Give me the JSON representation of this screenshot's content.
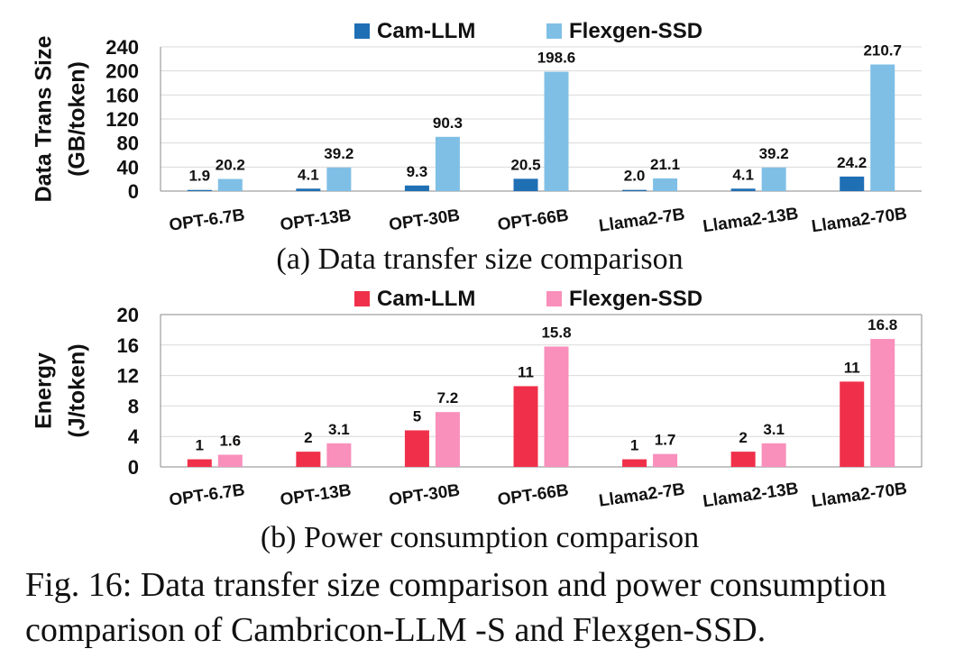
{
  "chart_data": [
    {
      "type": "bar",
      "categories": [
        "OPT-6.7B",
        "OPT-13B",
        "OPT-30B",
        "OPT-66B",
        "Llama2-7B",
        "Llama2-13B",
        "Llama2-70B"
      ],
      "series": [
        {
          "name": "Cam-LLM",
          "color": "#1f6fb5",
          "values": [
            1.9,
            4.1,
            9.3,
            20.5,
            2.0,
            4.1,
            24.2
          ],
          "labels": [
            "1.9",
            "4.1",
            "9.3",
            "20.5",
            "2.0",
            "4.1",
            "24.2"
          ]
        },
        {
          "name": "Flexgen-SSD",
          "color": "#7fbfe6",
          "values": [
            20.2,
            39.2,
            90.3,
            198.6,
            21.1,
            39.2,
            210.7
          ],
          "labels": [
            "20.2",
            "39.2",
            "90.3",
            "198.6",
            "21.1",
            "39.2",
            "210.7"
          ]
        }
      ],
      "ylabel": [
        "Data Trans Size",
        "(GB/token)"
      ],
      "ylim": [
        0,
        240
      ],
      "yticks": [
        0,
        40,
        80,
        120,
        160,
        200,
        240
      ],
      "grid": true,
      "legend": "top-center",
      "caption": "(a) Data transfer size comparison"
    },
    {
      "type": "bar",
      "categories": [
        "OPT-6.7B",
        "OPT-13B",
        "OPT-30B",
        "OPT-66B",
        "Llama2-7B",
        "Llama2-13B",
        "Llama2-70B"
      ],
      "series": [
        {
          "name": "Cam-LLM",
          "color": "#f0304a",
          "values": [
            1,
            2,
            4.8,
            10.6,
            1,
            2,
            11.2
          ],
          "labels": [
            "1",
            "2",
            "5",
            "11",
            "1",
            "2",
            "11"
          ]
        },
        {
          "name": "Flexgen-SSD",
          "color": "#f98fbb",
          "values": [
            1.6,
            3.1,
            7.2,
            15.8,
            1.7,
            3.1,
            16.8
          ],
          "labels": [
            "1.6",
            "3.1",
            "7.2",
            "15.8",
            "1.7",
            "3.1",
            "16.8"
          ]
        }
      ],
      "ylabel": [
        "Energy",
        "(J/token)"
      ],
      "ylim": [
        0,
        20
      ],
      "yticks": [
        0,
        4,
        8,
        12,
        16,
        20
      ],
      "grid": true,
      "legend": "top-center",
      "caption": "(b) Power consumption comparison"
    }
  ],
  "figure_caption": "Fig. 16: Data transfer size comparison and power consumption comparison of Cambricon-LLM -S and Flexgen-SSD."
}
